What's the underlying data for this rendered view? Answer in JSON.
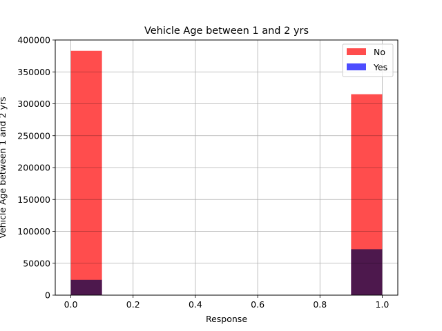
{
  "chart_data": {
    "type": "bar",
    "title": "Vehicle Age between 1 and 2 yrs",
    "xlabel": "Response",
    "ylabel": "Vehicle Age between 1 and 2 yrs",
    "xlim": [
      -0.05,
      1.05
    ],
    "ylim": [
      0,
      400000
    ],
    "x_ticks": [
      "0.0",
      "0.2",
      "0.4",
      "0.6",
      "0.8",
      "1.0"
    ],
    "x_tick_values": [
      0.0,
      0.2,
      0.4,
      0.6,
      0.8,
      1.0
    ],
    "y_ticks": [
      "0",
      "50000",
      "100000",
      "150000",
      "200000",
      "250000",
      "300000",
      "350000",
      "400000"
    ],
    "y_tick_values": [
      0,
      50000,
      100000,
      150000,
      200000,
      250000,
      300000,
      350000,
      400000
    ],
    "grid": true,
    "legend_position": "top-right",
    "series": [
      {
        "name": "No",
        "color": "#ff4d4d",
        "bars": [
          {
            "x0": 0.0,
            "x1": 0.1,
            "value": 383000
          },
          {
            "x0": 0.9,
            "x1": 1.0,
            "value": 315000
          }
        ]
      },
      {
        "name": "Yes",
        "color": "#4d4dff",
        "bars": [
          {
            "x0": 0.0,
            "x1": 0.1,
            "value": 24000
          },
          {
            "x0": 0.9,
            "x1": 1.0,
            "value": 72000
          }
        ]
      }
    ]
  }
}
